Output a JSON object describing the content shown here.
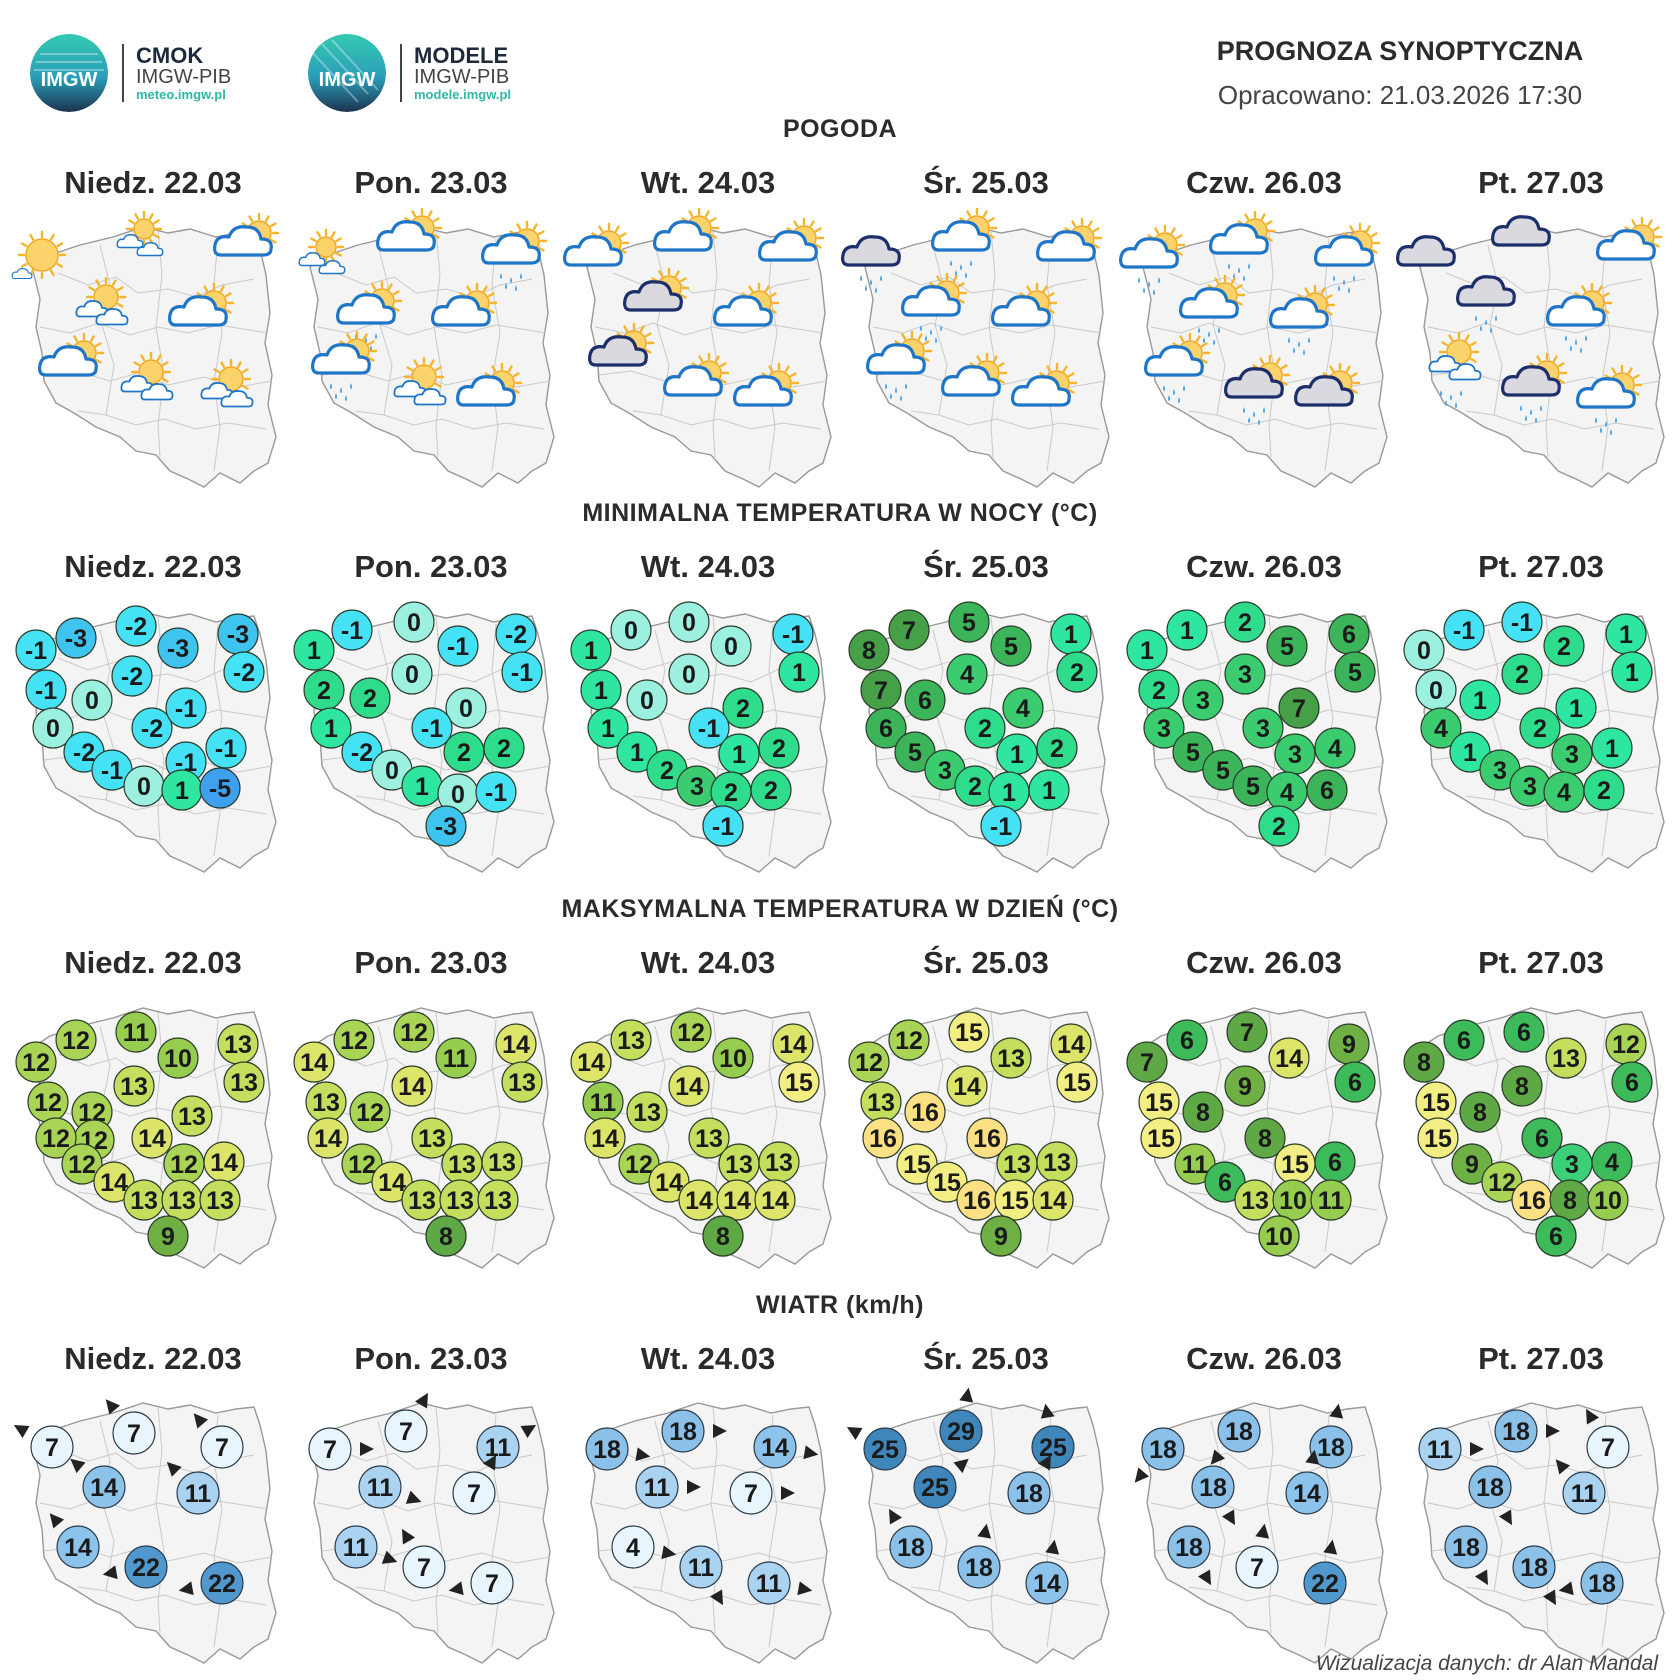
{
  "header": {
    "logo1": {
      "badge": "IMGW",
      "name": "CMOK",
      "org": "IMGW-PIB",
      "url": "meteo.imgw.pl"
    },
    "logo2": {
      "badge": "IMGW",
      "name": "MODELE",
      "org": "IMGW-PIB",
      "url": "modele.imgw.pl"
    },
    "title": "PROGNOZA SYNOPTYCZNA",
    "issued": "Opracowano: 21.03.2026 17:30"
  },
  "days": [
    "Niedz. 22.03",
    "Pon. 23.03",
    "Wt. 24.03",
    "Śr. 25.03",
    "Czw. 26.03",
    "Pt. 27.03"
  ],
  "sections": {
    "weather": "POGODA",
    "tmin": "MINIMALNA TEMPERATURA W NOCY (°C)",
    "tmax": "MAKSYMALNA TEMPERATURA W DZIEŃ (°C)",
    "wind": "WIATR (km/h)"
  },
  "weather_icons": [
    [
      "sun",
      "partly-cloudy-sun-small",
      "cloud-sun",
      "partly-cloudy-sun",
      "cloud-sun",
      "cloud-sun",
      "partly-cloudy-sun",
      "partly-cloudy-sun"
    ],
    [
      "partly-cloudy-sun-small",
      "cloud-sun",
      "cloud-sun-rain",
      "cloud-sun-rain",
      "cloud-sun",
      "cloud-sun-rain",
      "partly-cloudy-sun",
      "cloud-sun"
    ],
    [
      "cloud-sun",
      "cloud-sun",
      "cloud-sun",
      "dark-cloud-sun",
      "cloud-sun",
      "dark-cloud-sun",
      "cloud-sun",
      "cloud-sun"
    ],
    [
      "dark-cloud-rain",
      "cloud-sun-rain",
      "cloud-sun",
      "cloud-sun-rain",
      "cloud-sun",
      "cloud-sun-rain",
      "cloud-sun",
      "cloud-sun"
    ],
    [
      "cloud-sun-rain",
      "cloud-sun-rain",
      "cloud-sun-rain",
      "cloud-sun-rain",
      "cloud-sun-rain",
      "cloud-sun-rain",
      "dark-cloud-sun-rain",
      "dark-cloud-sun"
    ],
    [
      "dark-cloud",
      "dark-cloud",
      "cloud-sun",
      "dark-cloud-rain",
      "cloud-sun-rain",
      "partly-cloudy-sun-rain",
      "dark-cloud-sun-rain",
      "cloud-sun-rain"
    ]
  ],
  "tmin": [
    [
      -1,
      -3,
      -2,
      -3,
      -3,
      -1,
      0,
      -2,
      -2,
      0,
      -2,
      -1,
      -2,
      -1,
      0,
      -1,
      -1,
      1,
      -5
    ],
    [
      1,
      -1,
      0,
      -1,
      -2,
      2,
      2,
      0,
      -1,
      1,
      0,
      -1,
      -2,
      0,
      1,
      2,
      2,
      0,
      -1,
      -3
    ],
    [
      1,
      0,
      0,
      0,
      -1,
      1,
      0,
      0,
      1,
      1,
      2,
      -1,
      1,
      2,
      1,
      2,
      3,
      2,
      2,
      0,
      -1
    ],
    [
      8,
      7,
      5,
      5,
      1,
      7,
      6,
      4,
      2,
      6,
      2,
      4,
      1,
      2,
      5,
      3,
      2,
      1,
      1,
      -1
    ],
    [
      1,
      1,
      2,
      5,
      6,
      2,
      3,
      3,
      5,
      3,
      7,
      3,
      3,
      4,
      5,
      5,
      5,
      4,
      6,
      2
    ],
    [
      0,
      -1,
      -1,
      2,
      1,
      0,
      1,
      2,
      1,
      4,
      1,
      2,
      3,
      1,
      1,
      3,
      3,
      4,
      2
    ]
  ],
  "tmax": [
    [
      12,
      12,
      11,
      10,
      13,
      12,
      12,
      13,
      13,
      12,
      14,
      13,
      12,
      12,
      14,
      12,
      14,
      13,
      13,
      13,
      9
    ],
    [
      14,
      12,
      12,
      11,
      14,
      13,
      12,
      14,
      13,
      14,
      13,
      12,
      14,
      13,
      13,
      13,
      13,
      13,
      13,
      8
    ],
    [
      14,
      13,
      12,
      10,
      14,
      11,
      13,
      14,
      15,
      14,
      13,
      12,
      14,
      14,
      13,
      13,
      14,
      14,
      13,
      8
    ],
    [
      12,
      12,
      15,
      13,
      14,
      13,
      16,
      14,
      15,
      16,
      16,
      15,
      15,
      16,
      13,
      13,
      15,
      14,
      14,
      9
    ],
    [
      7,
      6,
      7,
      14,
      9,
      15,
      8,
      9,
      6,
      15,
      8,
      11,
      6,
      13,
      15,
      6,
      10,
      11,
      15,
      10
    ],
    [
      8,
      6,
      6,
      13,
      12,
      15,
      8,
      8,
      6,
      15,
      6,
      9,
      12,
      16,
      3,
      4,
      8,
      10,
      14,
      6
    ]
  ],
  "wind": [
    [
      7,
      7,
      7,
      14,
      11,
      14,
      22,
      22
    ],
    [
      7,
      7,
      11,
      11,
      7,
      11,
      7,
      7
    ],
    [
      18,
      18,
      14,
      11,
      7,
      4,
      11,
      11
    ],
    [
      25,
      29,
      25,
      25,
      18,
      18,
      18,
      14
    ],
    [
      18,
      18,
      18,
      18,
      14,
      18,
      7,
      22
    ],
    [
      11,
      18,
      7,
      18,
      11,
      18,
      18,
      18
    ]
  ],
  "credit": "Wizualizacja danych: dr Alan Mandal"
}
